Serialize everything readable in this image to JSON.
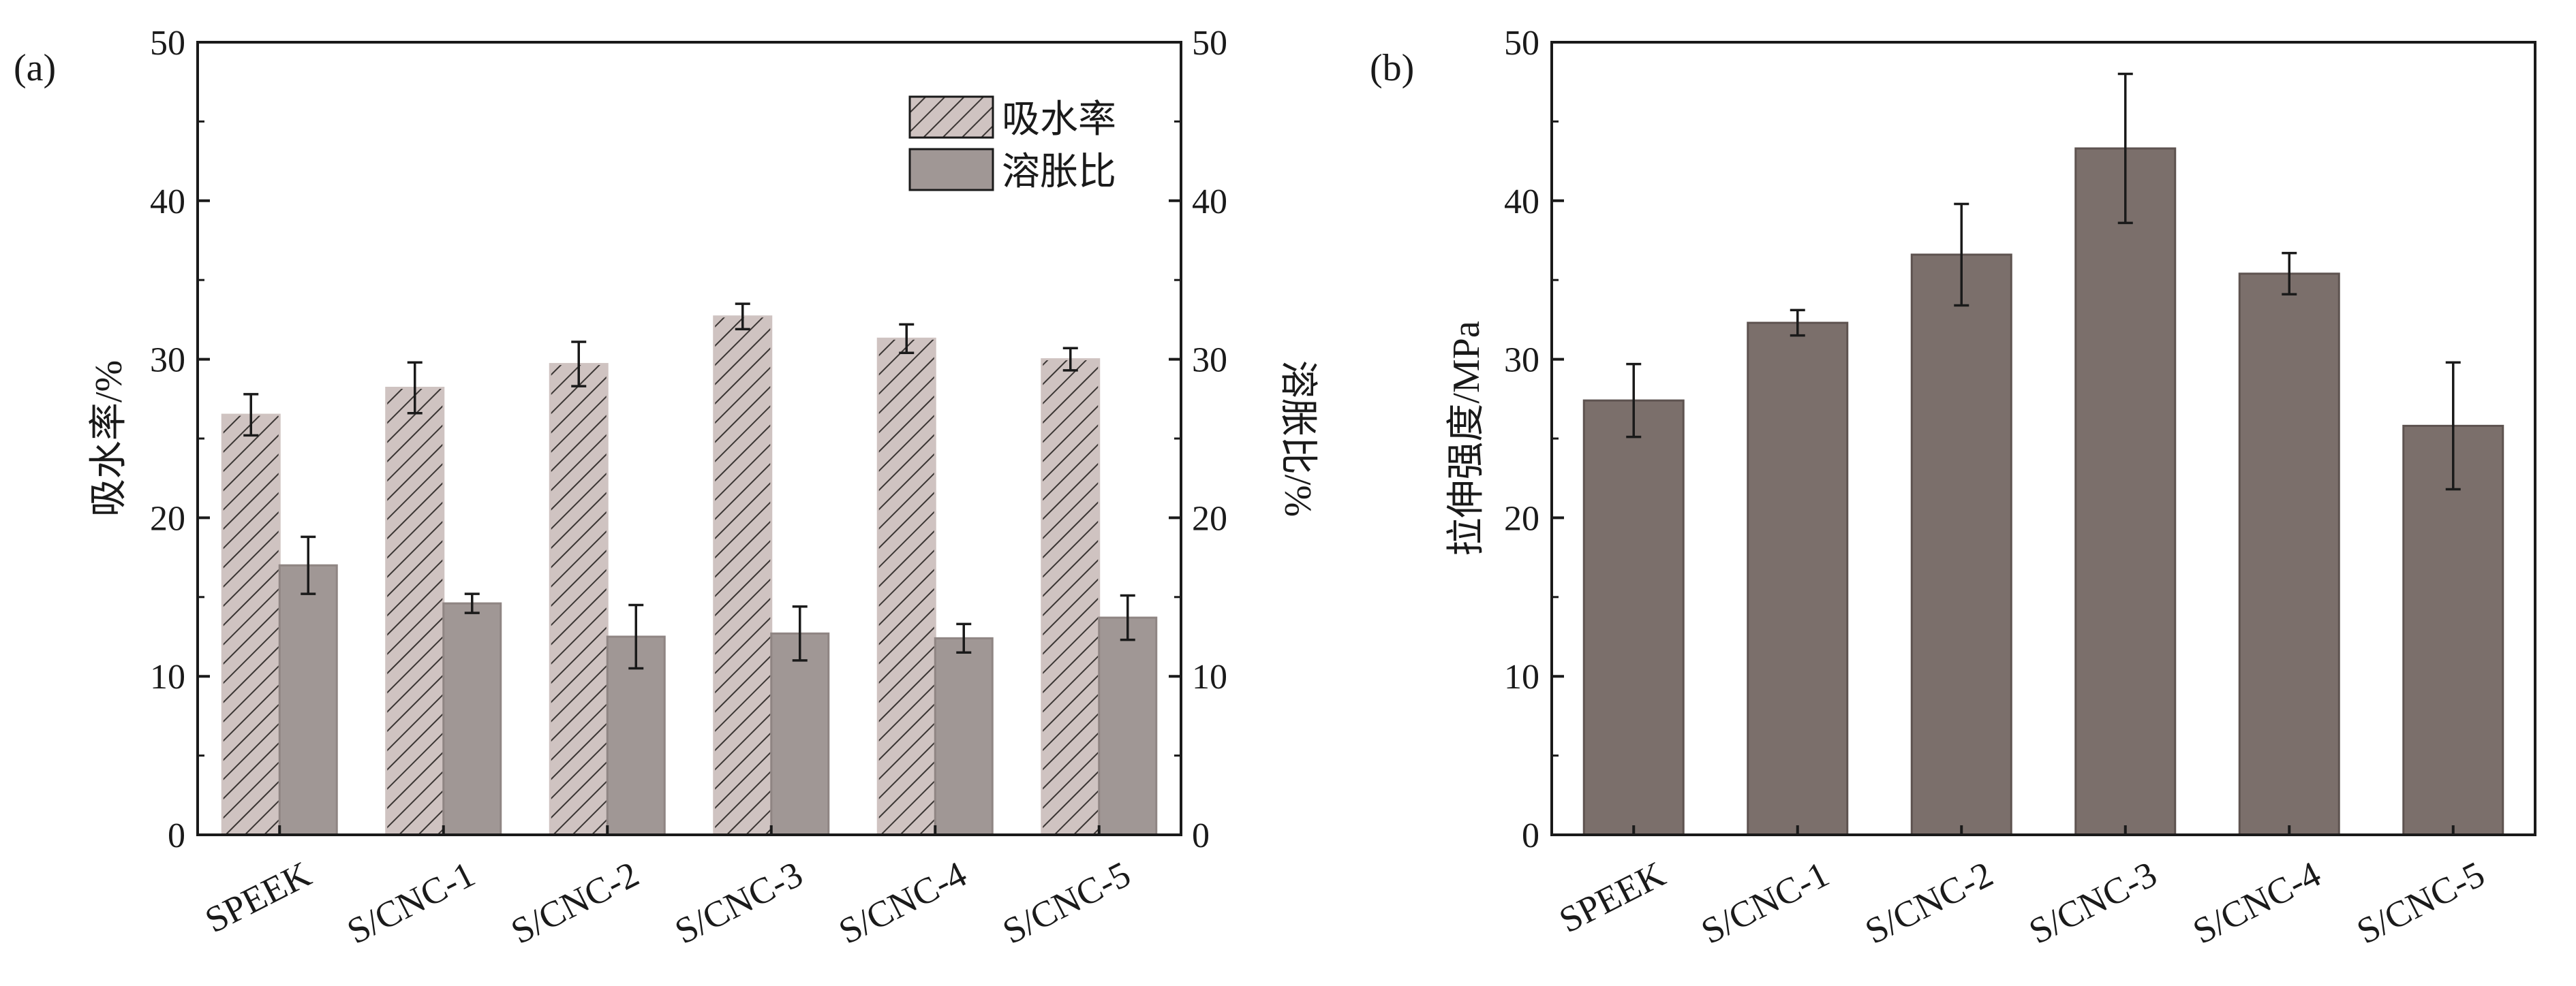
{
  "colors": {
    "hatch_fill": "#cfc3c1",
    "hatch_line": "#3a3533",
    "swelling": "#a09795",
    "tensile": "#7b6f6b",
    "axis": "#1a1a1a"
  },
  "chart_data": [
    {
      "panel_label": "(a)",
      "type": "bar",
      "categories": [
        "SPEEK",
        "S/CNC-1",
        "S/CNC-2",
        "S/CNC-3",
        "S/CNC-4",
        "S/CNC-5"
      ],
      "ylabel_left": "吸水率/%",
      "ylabel_right": "溶胀比/%",
      "ylim": [
        0,
        50
      ],
      "yticks": [
        "0",
        "10",
        "20",
        "30",
        "40",
        "50"
      ],
      "legend_position": "top-right",
      "series": [
        {
          "name": "吸水率",
          "pattern": "hatch",
          "values": [
            26.5,
            28.2,
            29.7,
            32.7,
            31.3,
            30.0
          ],
          "errors": [
            1.3,
            1.6,
            1.4,
            0.8,
            0.9,
            0.7
          ]
        },
        {
          "name": "溶胀比",
          "pattern": "solid",
          "values": [
            17.0,
            14.6,
            12.5,
            12.7,
            12.4,
            13.7
          ],
          "errors": [
            1.8,
            0.6,
            2.0,
            1.7,
            0.9,
            1.4
          ]
        }
      ]
    },
    {
      "panel_label": "(b)",
      "type": "bar",
      "categories": [
        "SPEEK",
        "S/CNC-1",
        "S/CNC-2",
        "S/CNC-3",
        "S/CNC-4",
        "S/CNC-5"
      ],
      "ylabel": "拉伸强度/MPa",
      "ylim": [
        0,
        50
      ],
      "yticks": [
        "0",
        "10",
        "20",
        "30",
        "40",
        "50"
      ],
      "series": [
        {
          "values": [
            27.4,
            32.3,
            36.6,
            43.3,
            35.4,
            25.8
          ],
          "errors": [
            2.3,
            0.8,
            3.2,
            4.7,
            1.3,
            4.0
          ]
        }
      ]
    }
  ]
}
